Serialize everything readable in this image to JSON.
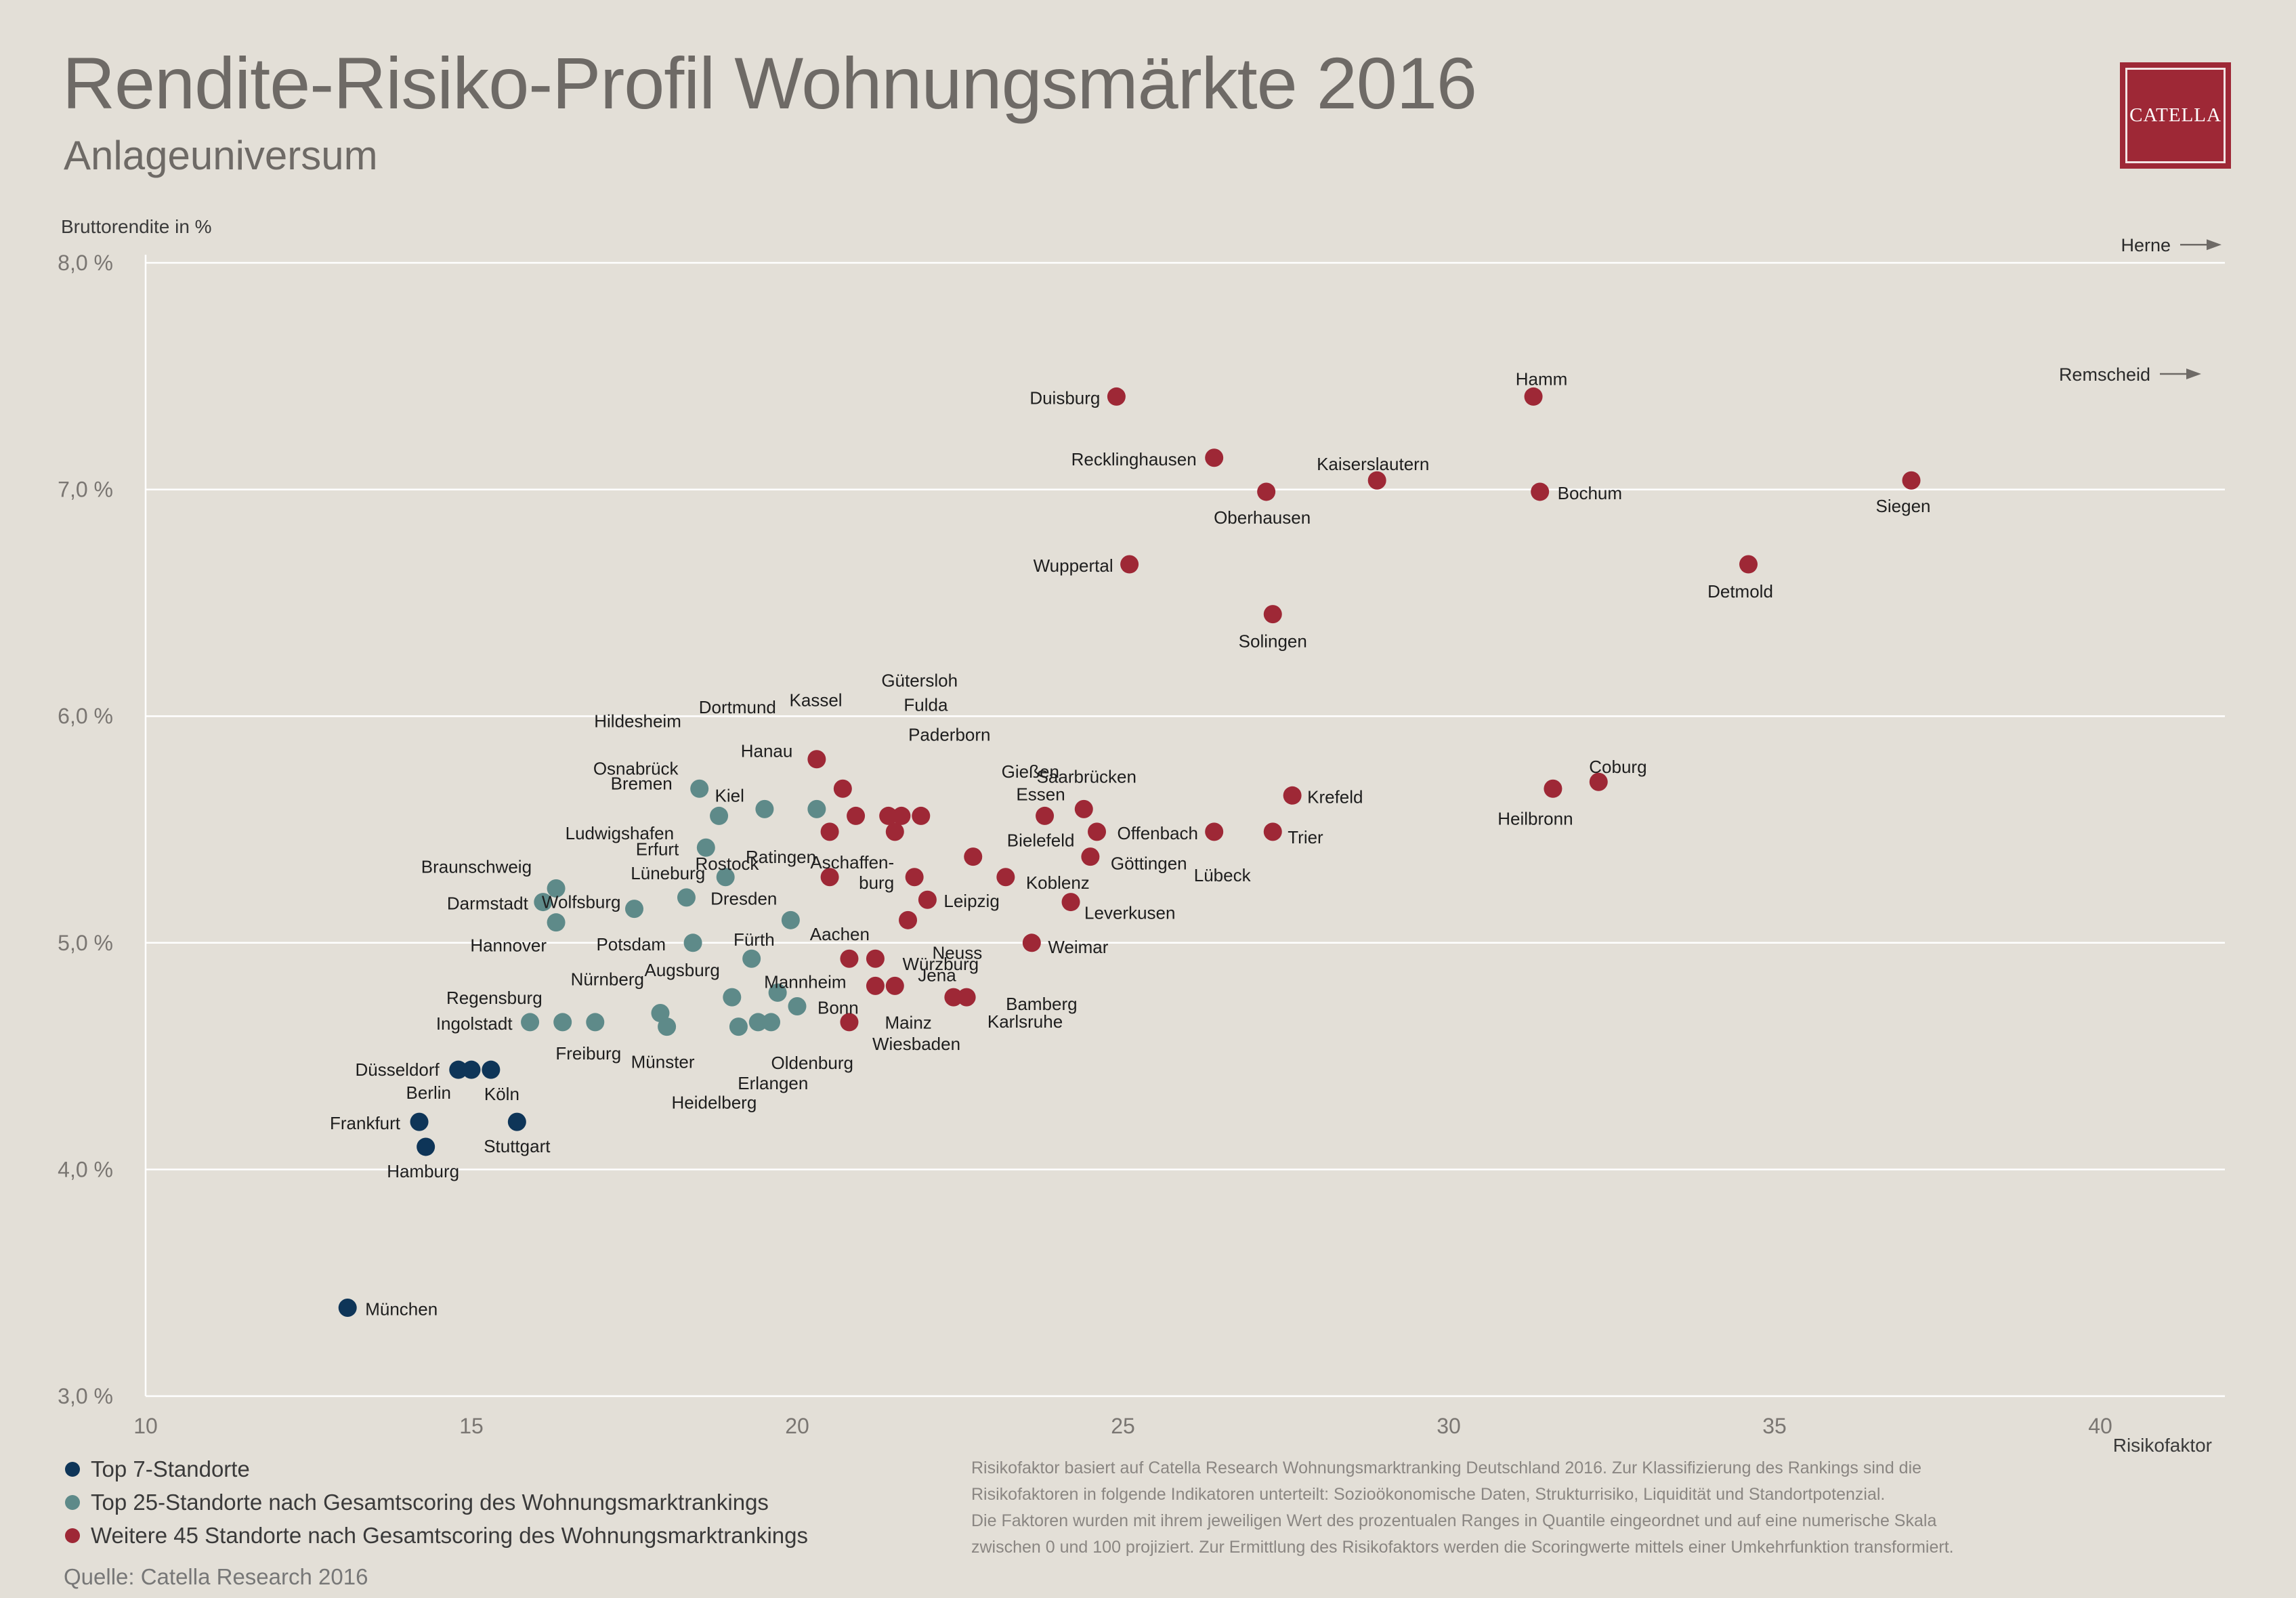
{
  "title": "Rendite-Risiko-Profil Wohnungsmärkte 2016",
  "subtitle": "Anlageuniversum",
  "logo_text": "CATELLA",
  "source": "Quelle: Catella Research 2016",
  "footnote": [
    "Risikofaktor basiert auf Catella Research Wohnungsmarktranking Deutschland 2016. Zur Klassifizierung des Rankings sind die",
    "Risikofaktoren in folgende Indikatoren unterteilt: Sozioökonomische Daten, Strukturrisiko, Liquidität und Standortpotenzial.",
    "Die Faktoren wurden mit ihrem jeweiligen Wert des prozentualen Ranges in Quantile eingeordnet und auf eine numerische Skala",
    "zwischen 0 und 100 projiziert. Zur Ermittlung des Risikofaktors werden die Scoringwerte mittels einer Umkehrfunktion transformiert."
  ],
  "legend": [
    {
      "label": "Top 7-Standorte",
      "color": "#0e3558"
    },
    {
      "label": "Top 25-Standorte nach Gesamtscoring des Wohnungsmarktrankings",
      "color": "#5e8a89"
    },
    {
      "label": "Weitere 45 Standorte nach Gesamtscoring des Wohnungsmarktrankings",
      "color": "#9e2836"
    }
  ],
  "colors": {
    "top7": "#0e3558",
    "top25": "#5e8a89",
    "weitere45": "#9e2836",
    "grid": "#ffffff",
    "axis_text": "#7a7672"
  },
  "chart_data": {
    "type": "scatter",
    "title": "Rendite-Risiko-Profil Wohnungsmärkte 2016",
    "xlabel": "Risikofaktor",
    "ylabel": "Bruttorendite in %",
    "xlim": [
      10,
      42
    ],
    "ylim": [
      3.0,
      8.0
    ],
    "x_ticks": [
      10,
      15,
      20,
      25,
      30,
      35,
      40
    ],
    "y_ticks": [
      3.0,
      4.0,
      5.0,
      6.0,
      7.0,
      8.0
    ],
    "y_tick_labels": [
      "3,0 %",
      "4,0 %",
      "5,0 %",
      "6,0 %",
      "7,0 %",
      "8,0 %"
    ],
    "grid": "horizontal",
    "legend_position": "bottom-left",
    "offchart": [
      {
        "label": "Herne",
        "y": 8.08
      },
      {
        "label": "Remscheid",
        "y": 7.51
      }
    ],
    "series": [
      {
        "name": "Top 7-Standorte",
        "group": "top7",
        "points": [
          {
            "label": "Düsseldorf",
            "x": 14.8,
            "y": 4.44
          },
          {
            "label": "Berlin",
            "x": 15.0,
            "y": 4.44
          },
          {
            "label": "Köln",
            "x": 15.3,
            "y": 4.44
          },
          {
            "label": "Frankfurt",
            "x": 14.2,
            "y": 4.21
          },
          {
            "label": "Stuttgart",
            "x": 15.7,
            "y": 4.21
          },
          {
            "label": "Hamburg",
            "x": 14.3,
            "y": 4.1
          },
          {
            "label": "München",
            "x": 13.1,
            "y": 3.39
          }
        ]
      },
      {
        "name": "Top 25-Standorte nach Gesamtscoring des Wohnungsmarktrankings",
        "group": "top25",
        "points": [
          {
            "label": "Bremen",
            "x": 18.5,
            "y": 5.68
          },
          {
            "label": "Kiel",
            "x": 19.5,
            "y": 5.59
          },
          {
            "label": "Osnabrück",
            "x": 18.8,
            "y": 5.56
          },
          {
            "label": "Hildesheim",
            "x": 20.3,
            "y": 5.59
          },
          {
            "label": "Erfurt",
            "x": 18.6,
            "y": 5.42
          },
          {
            "label": "Lüneburg",
            "x": 18.9,
            "y": 5.29
          },
          {
            "label": "Braunschweig",
            "x": 16.3,
            "y": 5.24
          },
          {
            "label": "Darmstadt",
            "x": 16.1,
            "y": 5.18
          },
          {
            "label": "Rostock",
            "x": 18.3,
            "y": 5.2
          },
          {
            "label": "Wolfsburg",
            "x": 17.5,
            "y": 5.15
          },
          {
            "label": "Hannover",
            "x": 16.3,
            "y": 5.09
          },
          {
            "label": "Dresden",
            "x": 19.9,
            "y": 5.1
          },
          {
            "label": "Potsdam",
            "x": 18.4,
            "y": 5.0
          },
          {
            "label": "Fürth",
            "x": 19.3,
            "y": 4.93
          },
          {
            "label": "Mannheim",
            "x": 19.7,
            "y": 4.78
          },
          {
            "label": "Augsburg",
            "x": 19.0,
            "y": 4.76
          },
          {
            "label": "Bonn",
            "x": 20.0,
            "y": 4.72
          },
          {
            "label": "Nürnberg",
            "x": 17.9,
            "y": 4.69
          },
          {
            "label": "Ingolstadt",
            "x": 15.9,
            "y": 4.65
          },
          {
            "label": "Regensburg",
            "x": 16.4,
            "y": 4.65
          },
          {
            "label": "Freiburg",
            "x": 16.9,
            "y": 4.65
          },
          {
            "label": "Münster",
            "x": 18.0,
            "y": 4.63
          },
          {
            "label": "Heidelberg",
            "x": 19.1,
            "y": 4.63
          },
          {
            "label": "Erlangen",
            "x": 19.4,
            "y": 4.65
          },
          {
            "label": "Oldenburg",
            "x": 19.6,
            "y": 4.65
          }
        ]
      },
      {
        "name": "Weitere 45 Standorte nach Gesamtscoring des Wohnungsmarktrankings",
        "group": "weitere45",
        "points": [
          {
            "label": "Duisburg",
            "x": 24.9,
            "y": 7.41
          },
          {
            "label": "Hamm",
            "x": 31.3,
            "y": 7.41
          },
          {
            "label": "Recklinghausen",
            "x": 26.4,
            "y": 7.14
          },
          {
            "label": "Kaiserslautern",
            "x": 28.9,
            "y": 7.04
          },
          {
            "label": "Oberhausen",
            "x": 27.2,
            "y": 6.99
          },
          {
            "label": "Bochum",
            "x": 31.4,
            "y": 6.99
          },
          {
            "label": "Siegen",
            "x": 37.1,
            "y": 7.04
          },
          {
            "label": "Wuppertal",
            "x": 25.1,
            "y": 6.67
          },
          {
            "label": "Detmold",
            "x": 34.6,
            "y": 6.67
          },
          {
            "label": "Solingen",
            "x": 27.3,
            "y": 6.45
          },
          {
            "label": "Dortmund",
            "x": 20.3,
            "y": 5.81
          },
          {
            "label": "Hanau",
            "x": 20.7,
            "y": 5.68
          },
          {
            "label": "Kassel",
            "x": 20.9,
            "y": 5.56
          },
          {
            "label": "Gütersloh",
            "x": 21.4,
            "y": 5.56
          },
          {
            "label": "Fulda",
            "x": 21.6,
            "y": 5.56
          },
          {
            "label": "Paderborn",
            "x": 21.9,
            "y": 5.56
          },
          {
            "label": "Ludwigshafen",
            "x": 20.5,
            "y": 5.49
          },
          {
            "label": "Gießen",
            "x": 21.5,
            "y": 5.49
          },
          {
            "label": "Essen",
            "x": 23.8,
            "y": 5.56
          },
          {
            "label": "Saarbrücken",
            "x": 24.4,
            "y": 5.59
          },
          {
            "label": "Offenbach",
            "x": 24.6,
            "y": 5.49
          },
          {
            "label": "Lübeck",
            "x": 26.4,
            "y": 5.49
          },
          {
            "label": "Trier",
            "x": 27.3,
            "y": 5.49
          },
          {
            "label": "Krefeld",
            "x": 27.6,
            "y": 5.65
          },
          {
            "label": "Heilbronn",
            "x": 31.6,
            "y": 5.68
          },
          {
            "label": "Coburg",
            "x": 32.3,
            "y": 5.71
          },
          {
            "label": "Bielefeld",
            "x": 22.7,
            "y": 5.38
          },
          {
            "label": "Göttingen",
            "x": 24.5,
            "y": 5.38
          },
          {
            "label": "Ratingen",
            "x": 20.5,
            "y": 5.29
          },
          {
            "label": "Aschaffen-burg",
            "x": 21.8,
            "y": 5.29
          },
          {
            "label": "Koblenz",
            "x": 23.2,
            "y": 5.29
          },
          {
            "label": "Leipzig",
            "x": 22.0,
            "y": 5.19
          },
          {
            "label": "Leverkusen",
            "x": 24.2,
            "y": 5.18
          },
          {
            "label": "Neuss",
            "x": 21.7,
            "y": 5.1
          },
          {
            "label": "Weimar",
            "x": 23.6,
            "y": 5.0
          },
          {
            "label": "Aachen",
            "x": 20.8,
            "y": 4.93
          },
          {
            "label": "Würzburg",
            "x": 21.2,
            "y": 4.93
          },
          {
            "label": "Jena",
            "x": 21.5,
            "y": 4.81
          },
          {
            "label": "Mainz",
            "x": 21.2,
            "y": 4.81
          },
          {
            "label": "Bamberg",
            "x": 22.6,
            "y": 4.76
          },
          {
            "label": "Karlsruhe",
            "x": 22.4,
            "y": 4.76
          },
          {
            "label": "Wiesbaden",
            "x": 20.8,
            "y": 4.65
          }
        ]
      }
    ]
  }
}
